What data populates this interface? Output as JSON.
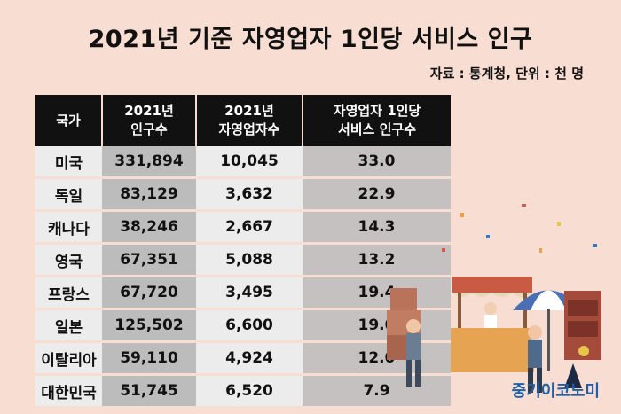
{
  "title": "2021년 기준 자영업자 1인당 서비스 인구",
  "source": "자료 : 통계청, 단위 : 천 명",
  "table": {
    "headers": [
      "국가",
      "2021년\n인구수",
      "2021년\n자영업자수",
      "자영업자 1인당\n서비스 인구수"
    ],
    "rows": [
      [
        "미국",
        "331,894",
        "10,045",
        "33.0"
      ],
      [
        "독일",
        "83,129",
        "3,632",
        "22.9"
      ],
      [
        "캐나다",
        "38,246",
        "2,667",
        "14.3"
      ],
      [
        "영국",
        "67,351",
        "5,088",
        "13.2"
      ],
      [
        "프랑스",
        "67,720",
        "3,495",
        "19.4"
      ],
      [
        "일본",
        "125,502",
        "6,600",
        "19.0"
      ],
      [
        "이탈리아",
        "59,110",
        "4,924",
        "12.0"
      ],
      [
        "대한민국",
        "51,745",
        "6,520",
        "7.9"
      ]
    ]
  },
  "logo": "중기이코노미"
}
